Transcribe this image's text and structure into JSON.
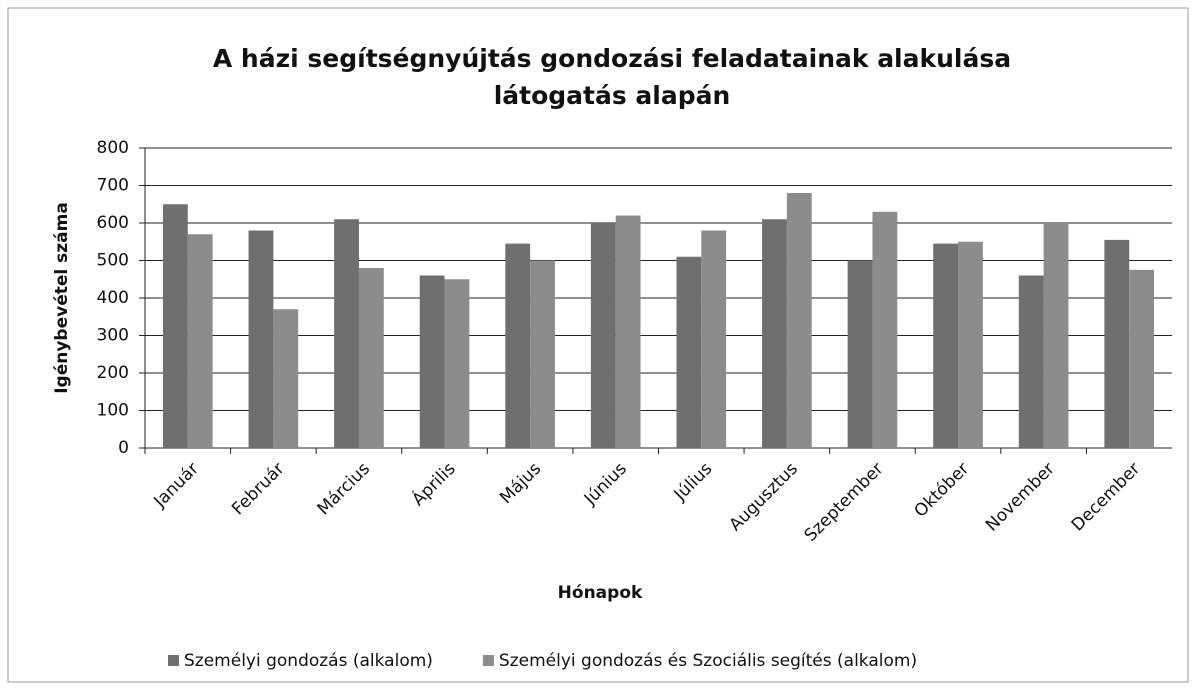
{
  "chart_data": {
    "type": "bar",
    "title": "A házi segítségnyújtás gondozási feladatainak alakulása",
    "subtitle": "látogatás alapán",
    "x_label": "Hónapok",
    "y_label": "Igénybevétel száma",
    "categories": [
      "Január",
      "Február",
      "Március",
      "Április",
      "Május",
      "Június",
      "Július",
      "Augusztus",
      "Szeptember",
      "Október",
      "November",
      "December"
    ],
    "series": [
      {
        "name": "Személyi gondozás (alkalom)",
        "color": "#6f6f6f",
        "values": [
          650,
          580,
          610,
          460,
          545,
          600,
          510,
          610,
          500,
          545,
          460,
          555
        ]
      },
      {
        "name": "Személyi gondozás és Szociális segítés (alkalom)",
        "color": "#8c8c8c",
        "values": [
          570,
          370,
          480,
          450,
          500,
          620,
          580,
          680,
          630,
          550,
          600,
          475
        ]
      }
    ],
    "ylim": [
      0,
      800
    ],
    "yticks": [
      0,
      100,
      200,
      300,
      400,
      500,
      600,
      700,
      800
    ],
    "grid": true,
    "legend": "bottom"
  }
}
